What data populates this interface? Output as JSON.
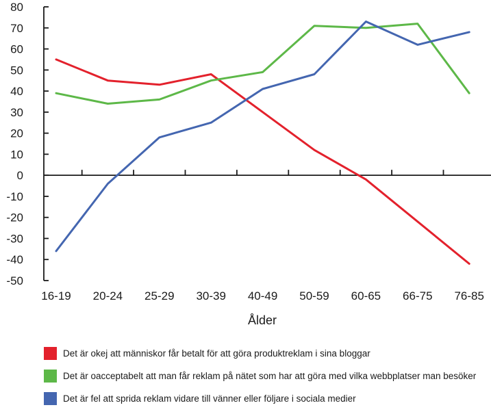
{
  "chart_data": {
    "type": "line",
    "xlabel": "Ålder",
    "ylabel": "",
    "categories": [
      "16-19",
      "20-24",
      "25-29",
      "30-39",
      "40-49",
      "50-59",
      "60-65",
      "66-75",
      "76-85"
    ],
    "ylim": [
      -50,
      80
    ],
    "yticks": [
      80,
      70,
      60,
      50,
      40,
      30,
      20,
      10,
      0,
      -10,
      -20,
      -30,
      -40,
      -50
    ],
    "grid": false,
    "legend_position": "bottom",
    "series": [
      {
        "name": "Det är okej att människor får betalt för att göra produktreklam i sina bloggar",
        "color": "#e3212c",
        "values": [
          55,
          45,
          43,
          48,
          30,
          12,
          -2,
          -22,
          -42
        ]
      },
      {
        "name": "Det är oacceptabelt att man får reklam på nätet som har att göra med vilka webbplatser man besöker",
        "color": "#5db848",
        "values": [
          39,
          34,
          36,
          45,
          49,
          71,
          70,
          72,
          39
        ]
      },
      {
        "name": "Det är fel att sprida reklam vidare till vänner eller följare i sociala medier",
        "color": "#4466b0",
        "values": [
          -36,
          -4,
          18,
          25,
          41,
          48,
          73,
          62,
          68
        ]
      }
    ]
  }
}
